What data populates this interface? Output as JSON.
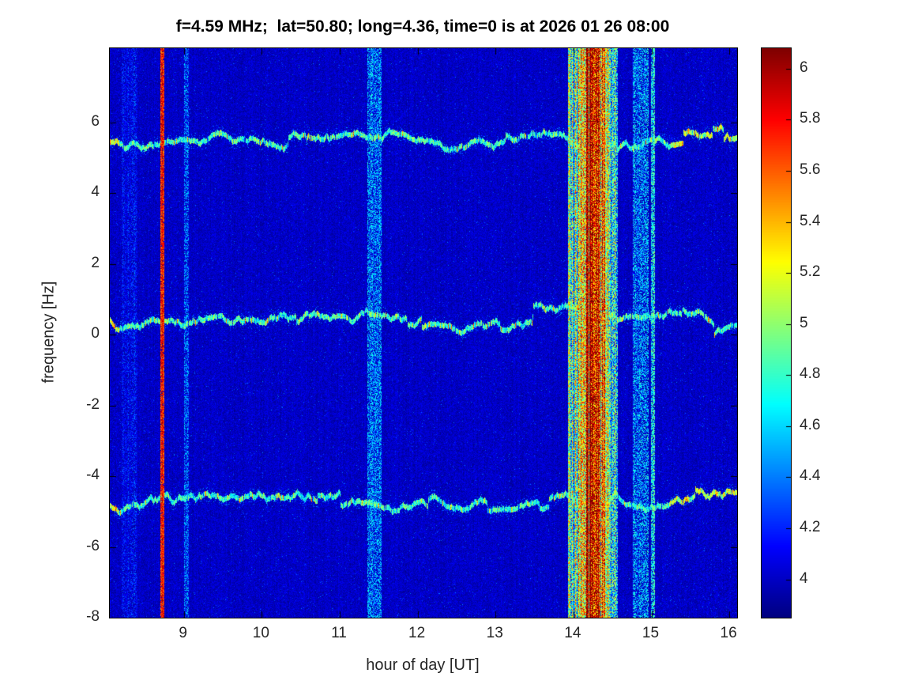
{
  "chart_data": {
    "type": "heatmap",
    "title": "f=4.59 MHz;  lat=50.80; long=4.36, time=0 is at 2026 01 26 08:00",
    "xlabel": "hour of day [UT]",
    "ylabel": "frequency [Hz]",
    "colormap": "jet",
    "x_range": [
      8.05,
      16.1
    ],
    "x_tick_values": [
      9,
      10,
      11,
      12,
      13,
      14,
      15,
      16
    ],
    "x_tick_labels": [
      "9",
      "10",
      "11",
      "12",
      "13",
      "14",
      "15",
      "16"
    ],
    "y_range": [
      -8,
      8.1
    ],
    "y_tick_values": [
      -8,
      -6,
      -4,
      -2,
      0,
      2,
      4,
      6
    ],
    "y_tick_labels": [
      "-8",
      "-6",
      "-4",
      "-2",
      "0",
      "2",
      "4",
      "6"
    ],
    "colorbar": {
      "min": 3.85,
      "max": 6.08,
      "tick_values": [
        4,
        4.2,
        4.4,
        4.6,
        4.8,
        5,
        5.2,
        5.4,
        5.6,
        5.8,
        6
      ],
      "tick_labels": [
        "4",
        "4.2",
        "4.4",
        "4.6",
        "4.8",
        "5",
        "5.2",
        "5.4",
        "5.6",
        "5.8",
        "6"
      ]
    },
    "background_level": 3.9,
    "noise_amplitude": 0.2,
    "horizontal_traces": [
      {
        "name": "upper-sideband-trace",
        "center_freq": 5.45,
        "level": 4.8,
        "speckle": 0.65,
        "bright_right": true
      },
      {
        "name": "carrier-trace",
        "center_freq": 0.45,
        "level": 4.8,
        "speckle": 0.65,
        "bright_right": false
      },
      {
        "name": "lower-sideband-trace",
        "center_freq": -4.7,
        "level": 4.8,
        "speckle": 0.65,
        "bright_right": true
      }
    ],
    "vertical_bands": [
      {
        "name": "faint-speckle-band",
        "time": 8.3,
        "width": 0.2,
        "level": 4.2,
        "speckle": 0.3,
        "coverage": 0.45
      },
      {
        "name": "narrow-red-line",
        "time": 8.72,
        "width": 0.05,
        "level": 5.8,
        "speckle": 0.55,
        "coverage": 0.95
      },
      {
        "name": "faint-line",
        "time": 9.03,
        "width": 0.06,
        "level": 4.45,
        "speckle": 0.4,
        "coverage": 0.55
      },
      {
        "name": "cyan-band",
        "time": 11.45,
        "width": 0.18,
        "level": 4.5,
        "speckle": 0.5,
        "coverage": 0.6
      },
      {
        "name": "strong-interference-band",
        "time": 14.25,
        "width": 0.64,
        "level": 5.75,
        "speckle": 1.2,
        "coverage": 1,
        "profile": "gauss"
      },
      {
        "name": "post-event-cyan-band",
        "time": 14.86,
        "width": 0.2,
        "level": 4.55,
        "speckle": 0.55,
        "coverage": 0.55
      },
      {
        "name": "thin-cyan-line",
        "time": 15.02,
        "width": 0.05,
        "level": 4.75,
        "speckle": 0.5,
        "coverage": 0.7
      }
    ]
  }
}
